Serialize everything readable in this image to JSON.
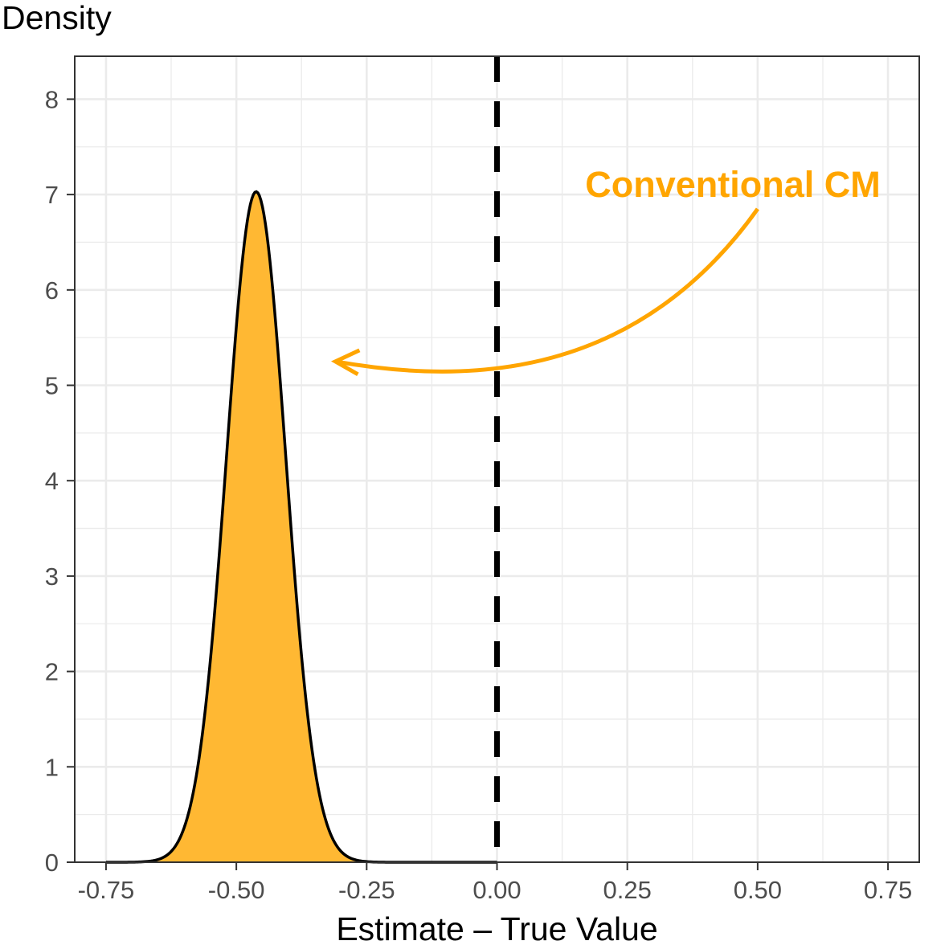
{
  "chart_data": {
    "type": "area",
    "title": "",
    "ylabel": "Density",
    "xlabel": "Estimate – True Value",
    "xlim": [
      -0.81,
      0.81
    ],
    "ylim": [
      0,
      8.45
    ],
    "x_ticks": [
      -0.75,
      -0.5,
      -0.25,
      0.0,
      0.25,
      0.5,
      0.75
    ],
    "x_tick_labels": [
      "-0.75",
      "-0.50",
      "-0.25",
      "0.00",
      "0.25",
      "0.50",
      "0.75"
    ],
    "y_ticks": [
      0,
      1,
      2,
      3,
      4,
      5,
      6,
      7,
      8
    ],
    "y_tick_labels": [
      "0",
      "1",
      "2",
      "3",
      "4",
      "5",
      "6",
      "7",
      "8"
    ],
    "grid": true,
    "legend": "none",
    "series": [
      {
        "distribution": "normal-density",
        "mean": -0.462,
        "sd": 0.0567,
        "support": [
          -0.75,
          0.0
        ],
        "peak_density": 7.03,
        "fill": "#FFB833",
        "stroke": "#000000"
      }
    ],
    "reference_line": {
      "x": 0.0,
      "style": "dashed",
      "color": "#000000"
    },
    "annotation": {
      "text": "Conventional CM",
      "color": "#FFA500",
      "arrow_from": [
        0.5,
        6.85
      ],
      "arrow_to": [
        -0.31,
        5.25
      ]
    }
  }
}
